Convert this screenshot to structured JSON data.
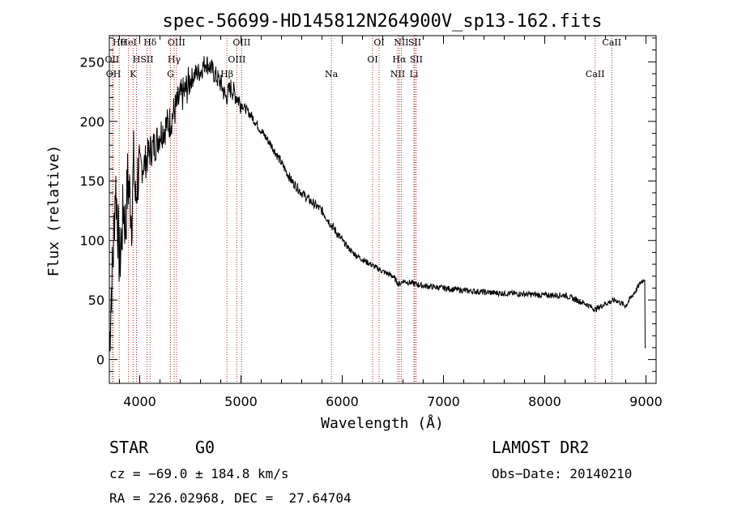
{
  "chart_data": {
    "type": "line",
    "title": "spec-56699-HD145812N264900V_sp13-162.fits",
    "xlabel": "Wavelength (Å)",
    "ylabel": "Flux (relative)",
    "xlim": [
      3700,
      9100
    ],
    "ylim": [
      -20,
      272
    ],
    "xticks": [
      4000,
      5000,
      6000,
      7000,
      8000,
      9000
    ],
    "yticks": [
      0,
      50,
      100,
      150,
      200,
      250
    ],
    "anchors": [
      [
        3700,
        10
      ],
      [
        3720,
        60
      ],
      [
        3740,
        90
      ],
      [
        3760,
        150
      ],
      [
        3780,
        120
      ],
      [
        3800,
        80
      ],
      [
        3820,
        100
      ],
      [
        3840,
        130
      ],
      [
        3860,
        110
      ],
      [
        3880,
        150
      ],
      [
        3900,
        140
      ],
      [
        3920,
        120
      ],
      [
        3940,
        165
      ],
      [
        3960,
        130
      ],
      [
        3980,
        155
      ],
      [
        4000,
        160
      ],
      [
        4050,
        165
      ],
      [
        4100,
        175
      ],
      [
        4150,
        180
      ],
      [
        4200,
        190
      ],
      [
        4250,
        195
      ],
      [
        4300,
        200
      ],
      [
        4350,
        210
      ],
      [
        4400,
        220
      ],
      [
        4450,
        225
      ],
      [
        4500,
        235
      ],
      [
        4550,
        240
      ],
      [
        4600,
        242
      ],
      [
        4650,
        250
      ],
      [
        4700,
        245
      ],
      [
        4750,
        238
      ],
      [
        4800,
        232
      ],
      [
        4850,
        220
      ],
      [
        4900,
        228
      ],
      [
        4950,
        222
      ],
      [
        5000,
        215
      ],
      [
        5100,
        205
      ],
      [
        5200,
        192
      ],
      [
        5300,
        180
      ],
      [
        5400,
        165
      ],
      [
        5500,
        150
      ],
      [
        5600,
        140
      ],
      [
        5700,
        132
      ],
      [
        5800,
        125
      ],
      [
        5900,
        112
      ],
      [
        6000,
        100
      ],
      [
        6100,
        90
      ],
      [
        6200,
        84
      ],
      [
        6300,
        79
      ],
      [
        6400,
        74
      ],
      [
        6500,
        70
      ],
      [
        6560,
        63
      ],
      [
        6600,
        66
      ],
      [
        6700,
        64
      ],
      [
        6800,
        62
      ],
      [
        7000,
        60
      ],
      [
        7200,
        58
      ],
      [
        7500,
        56
      ],
      [
        7800,
        55
      ],
      [
        8000,
        54
      ],
      [
        8200,
        54
      ],
      [
        8400,
        47
      ],
      [
        8500,
        42
      ],
      [
        8600,
        47
      ],
      [
        8700,
        50
      ],
      [
        8800,
        45
      ],
      [
        8850,
        52
      ],
      [
        8900,
        58
      ],
      [
        8950,
        65
      ],
      [
        8990,
        68
      ],
      [
        9000,
        10
      ]
    ],
    "emission_lines": [
      {
        "label": "Hθ",
        "wavelength": 3797
      },
      {
        "label": "OII",
        "wavelength": 3727
      },
      {
        "label": "OH",
        "wavelength": 3740
      },
      {
        "label": "HeI",
        "wavelength": 3889
      },
      {
        "label": "H",
        "wavelength": 3968
      },
      {
        "label": "K",
        "wavelength": 3934
      },
      {
        "label": "Hδ",
        "wavelength": 4102
      },
      {
        "label": "SII",
        "wavelength": 4072
      },
      {
        "label": "G",
        "wavelength": 4304
      },
      {
        "label": "OIII",
        "wavelength": 4363
      },
      {
        "label": "Hγ",
        "wavelength": 4340
      },
      {
        "label": "Hβ",
        "wavelength": 4861
      },
      {
        "label": "OIII",
        "wavelength": 5007
      },
      {
        "label": "OIII",
        "wavelength": 4959
      },
      {
        "label": "Na",
        "wavelength": 5893
      },
      {
        "label": "OI",
        "wavelength": 6364
      },
      {
        "label": "OI",
        "wavelength": 6300
      },
      {
        "label": "NII",
        "wavelength": 6548
      },
      {
        "label": "NII",
        "wavelength": 6583
      },
      {
        "label": "Hα",
        "wavelength": 6563
      },
      {
        "label": "Li",
        "wavelength": 6708
      },
      {
        "label": "SII",
        "wavelength": 6716
      },
      {
        "label": "SII",
        "wavelength": 6731
      },
      {
        "label": "CaII",
        "wavelength": 8498
      },
      {
        "label": "CaII",
        "wavelength": 8662
      }
    ],
    "line_color": "#000000",
    "marker_color": "#b22222"
  },
  "info": {
    "class": "STAR",
    "subclass": "G0",
    "survey": "LAMOST DR2",
    "cz": "cz = −69.0 ± 184.8 km/s",
    "obs_date": "Obs−Date: 20140210",
    "coords": "RA = 226.02968, DEC =  27.64704"
  }
}
